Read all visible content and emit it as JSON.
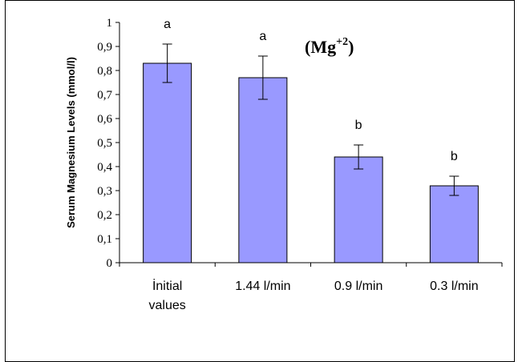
{
  "chart_data": {
    "type": "bar",
    "categories": [
      "İnitial values",
      "1.44 l/min",
      "0.9 l/min",
      "0.3 l/min"
    ],
    "category_lines": [
      [
        "İnitial",
        "values"
      ],
      [
        "1.44 l/min"
      ],
      [
        "0.9 l/min"
      ],
      [
        "0.3 l/min"
      ]
    ],
    "values": [
      0.83,
      0.77,
      0.44,
      0.32
    ],
    "errors": [
      0.08,
      0.09,
      0.05,
      0.04
    ],
    "significance": [
      "a",
      "a",
      "b",
      "b"
    ],
    "ylabel": "Serum Magnesium Levels (mmol/l)",
    "ylim": [
      0,
      1
    ],
    "yticks": [
      "0",
      "0,1",
      "0,2",
      "0,3",
      "0,4",
      "0,5",
      "0,6",
      "0,7",
      "0,8",
      "0,9",
      "1"
    ],
    "annotation": {
      "base": "(Mg",
      "sup": "+2",
      "close": ")"
    },
    "bar_color": "#9999ff",
    "grid": false,
    "legend": "none"
  }
}
